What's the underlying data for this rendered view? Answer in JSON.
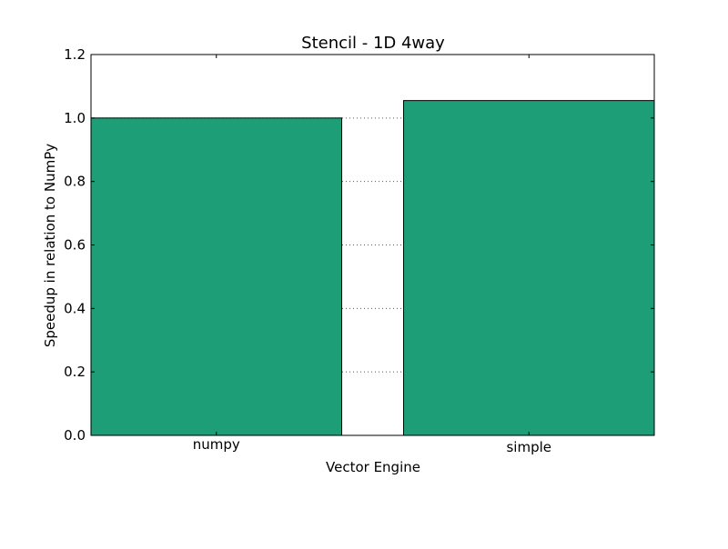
{
  "chart_data": {
    "type": "bar",
    "title": "Stencil - 1D 4way",
    "xlabel": "Vector Engine",
    "ylabel": "Speedup in relation to NumPy",
    "categories": [
      "numpy",
      "simple"
    ],
    "values": [
      1.0,
      1.055
    ],
    "ylim": [
      0,
      1.2
    ],
    "yticks": [
      "0.0",
      "0.2",
      "0.4",
      "0.6",
      "0.8",
      "1.0",
      "1.2"
    ],
    "grid": "dotted horizontal",
    "legend": "none",
    "colors": {
      "bar_fill": "#1d9e76",
      "bar_edge": "#000000",
      "grid": "#555555"
    }
  }
}
